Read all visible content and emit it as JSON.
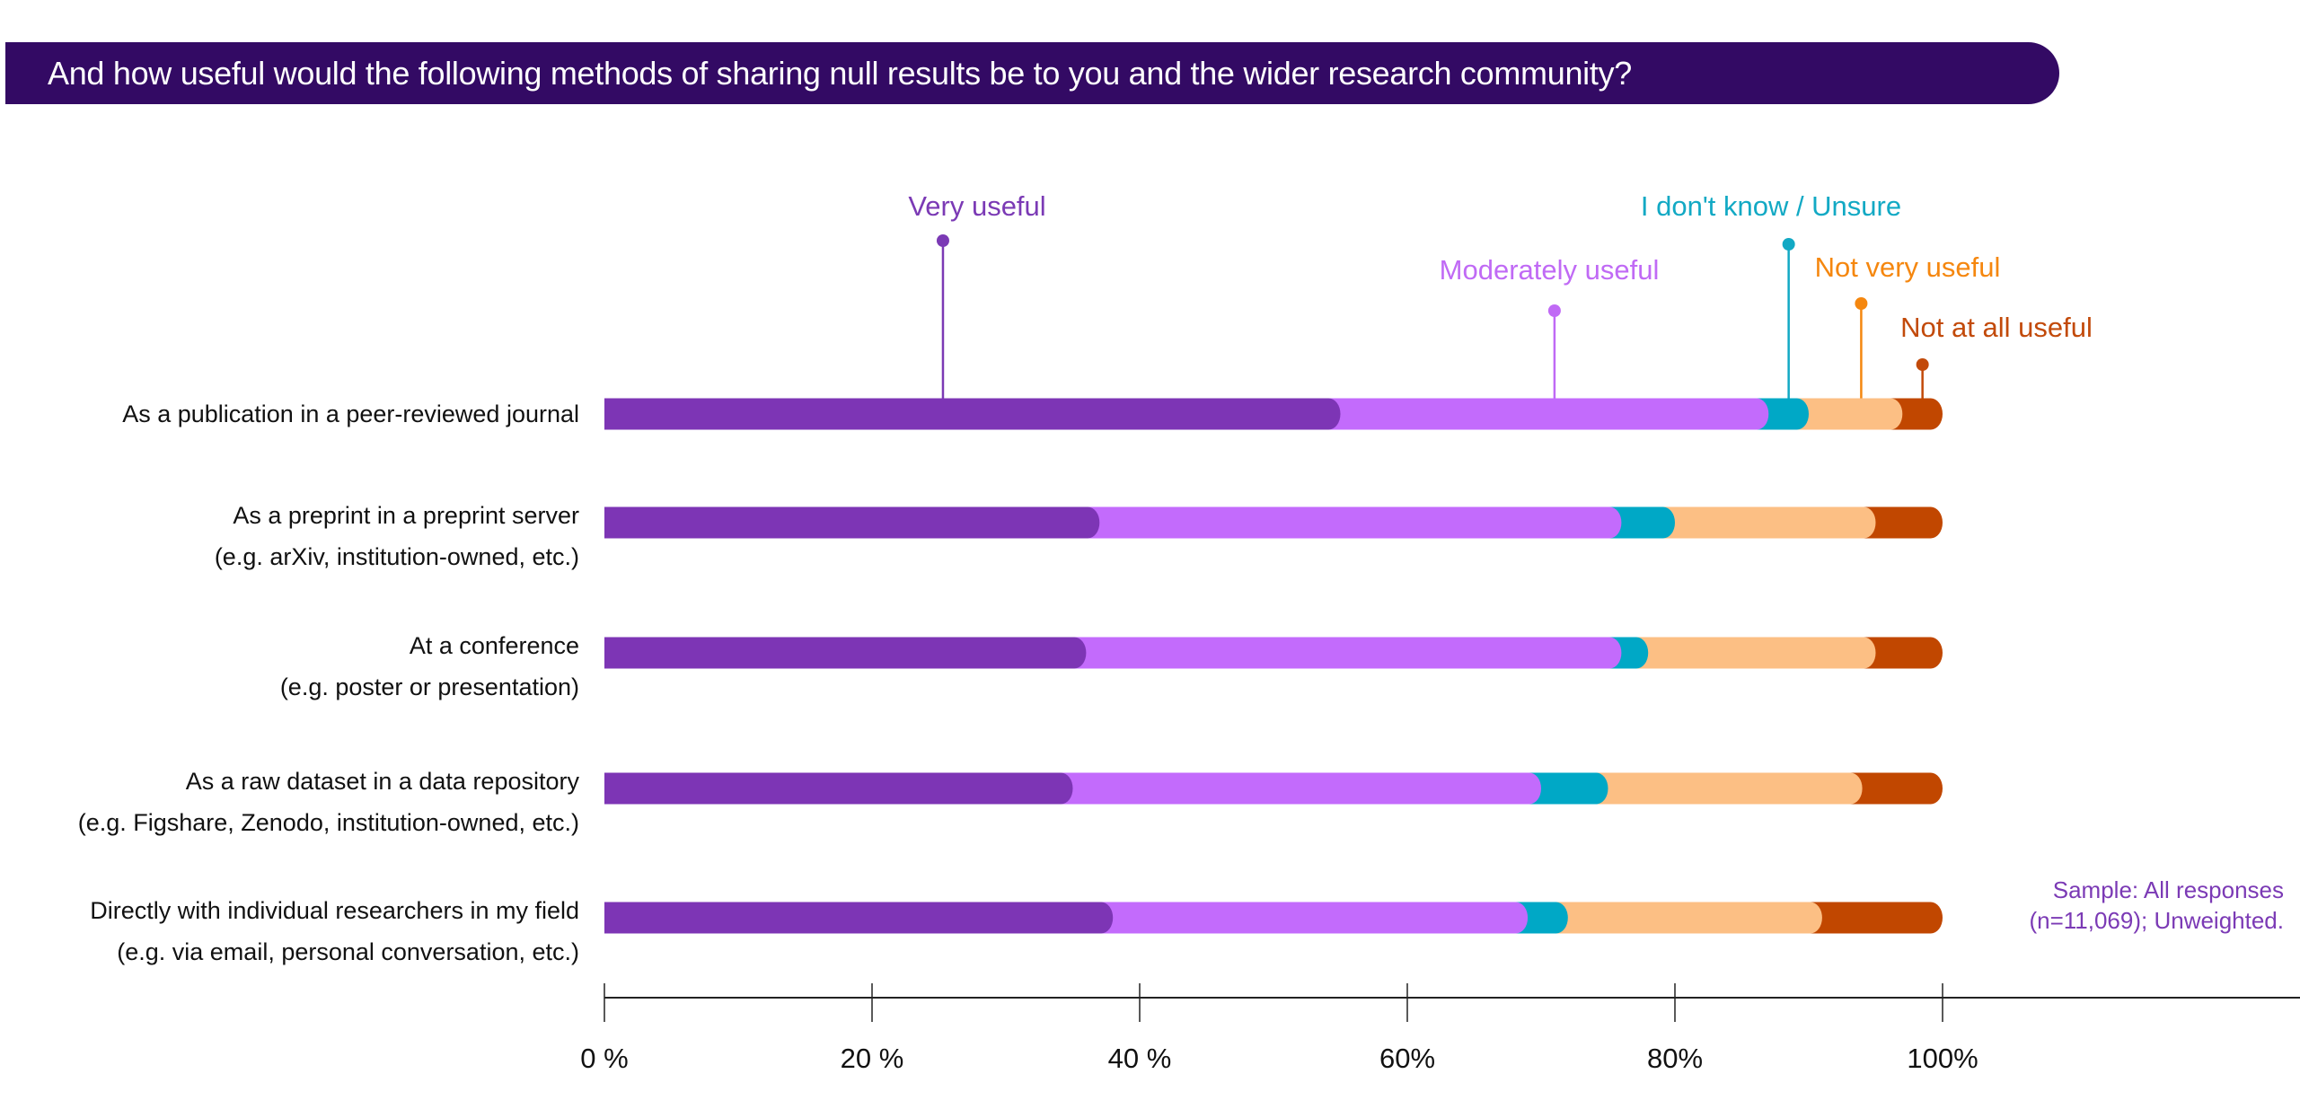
{
  "title": "And how useful would the following methods of sharing null results be to you and the wider research community?",
  "colors": {
    "banner": "#330a64",
    "axis": "#222222",
    "label_text": "#111111",
    "note": "#7b3ab5"
  },
  "note": {
    "line1": "Sample: All responses",
    "line2": "(n=11,069); Unweighted."
  },
  "chart_data": {
    "type": "bar",
    "orientation": "horizontal",
    "stacked": true,
    "title": "And how useful would the following methods of sharing null results be to you and the wider research community?",
    "xlabel": "",
    "ylabel": "",
    "xlim": [
      0,
      100
    ],
    "x_unit": "%",
    "x_ticks": [
      0,
      20,
      40,
      60,
      80,
      100
    ],
    "x_tick_labels": [
      "0 %",
      "20 %",
      "40 %",
      "60%",
      "80%",
      "100%"
    ],
    "grid": false,
    "legend_placement": "top (callout labels above first bar)",
    "categories": [
      [
        "As a publication in a peer-reviewed journal"
      ],
      [
        "As a preprint in a preprint server",
        "(e.g. arXiv, institution-owned, etc.)"
      ],
      [
        "At a conference",
        "(e.g. poster or presentation)"
      ],
      [
        "As a raw dataset in a data repository",
        "(e.g. Figshare, Zenodo, institution-owned, etc.)"
      ],
      [
        "Directly with individual researchers in my field",
        "(e.g. via email, personal conversation, etc.)"
      ]
    ],
    "series": [
      {
        "name": "Very useful",
        "color": "#7d35b5",
        "label_color": "#7b3ab5",
        "values": [
          55,
          37,
          36,
          35,
          38
        ]
      },
      {
        "name": "Moderately useful",
        "color": "#c36bfc",
        "label_color": "#c06af5",
        "values": [
          32,
          39,
          40,
          35,
          31
        ]
      },
      {
        "name": "I don't know / Unsure",
        "color": "#00a8c6",
        "label_color": "#12a9c4",
        "values": [
          3,
          4,
          2,
          5,
          3
        ]
      },
      {
        "name": "Not very useful",
        "color": "#fcbf84",
        "label_color": "#f5870f",
        "values": [
          7,
          15,
          17,
          19,
          19
        ]
      },
      {
        "name": "Not at all useful",
        "color": "#c14700",
        "label_color": "#c24a0a",
        "values": [
          3,
          5,
          5,
          6,
          9
        ]
      }
    ]
  }
}
